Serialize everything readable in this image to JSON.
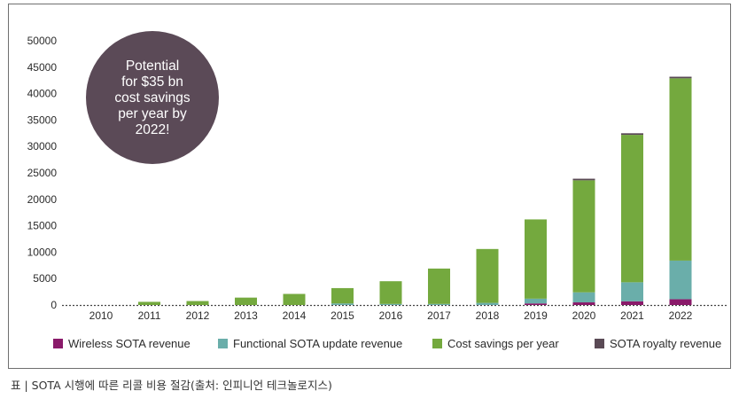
{
  "chart_data": {
    "type": "bar",
    "stacked": true,
    "categories": [
      "2010",
      "2011",
      "2012",
      "2013",
      "2014",
      "2015",
      "2016",
      "2017",
      "2018",
      "2019",
      "2020",
      "2021",
      "2022"
    ],
    "series": [
      {
        "name": "Wireless SOTA revenue",
        "color": "#8a1a6a",
        "values": [
          0,
          0,
          0,
          0,
          0,
          0,
          0,
          0,
          0,
          300,
          500,
          700,
          1100
        ]
      },
      {
        "name": "Functional SOTA update revenue",
        "color": "#6aaeaa",
        "values": [
          0,
          0,
          0,
          0,
          0,
          300,
          200,
          200,
          400,
          900,
          1900,
          3600,
          7300
        ]
      },
      {
        "name": "Cost savings per year",
        "color": "#74a93e",
        "values": [
          0,
          600,
          750,
          1400,
          2100,
          2900,
          4300,
          6700,
          10200,
          15000,
          21200,
          27900,
          34500
        ]
      },
      {
        "name": "SOTA royalty revenue",
        "color": "#5a4a55",
        "values": [
          0,
          0,
          0,
          0,
          0,
          0,
          0,
          0,
          0,
          0,
          300,
          300,
          300
        ]
      }
    ],
    "ylim": [
      0,
      50000
    ],
    "yticks": [
      "50000",
      "45000",
      "40000",
      "35000",
      "30000",
      "25000",
      "20000",
      "15000",
      "10000",
      "5000",
      "0"
    ],
    "xlabel": "",
    "ylabel": "",
    "grid": false,
    "legend": "bottom",
    "annotation": {
      "lines": [
        "Potential",
        "for $35 bn",
        "cost savings",
        "per year by",
        "2022!"
      ],
      "color": "#5b4a57"
    }
  },
  "caption": "표 | SOTA 시행에 따른 리콜 비용 절감(출처: 인피니언 테크놀로지스)"
}
